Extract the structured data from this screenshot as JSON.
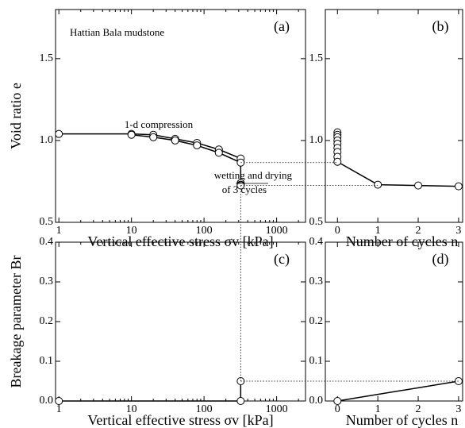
{
  "chart_data": [
    {
      "type": "line",
      "label": "(a)",
      "xlabel": "Vertical effective stress σv [kPa]",
      "ylabel": "Void ratio e",
      "annotations": [
        "Hattian Bala mudstone",
        "1-d compression",
        "wetting and drying",
        "of 3 cycles"
      ],
      "xlog": true,
      "xlim": [
        0.9,
        2500
      ],
      "xticks": [
        1,
        10,
        100,
        1000
      ],
      "ylim": [
        0.5,
        1.8
      ],
      "yticks": [
        0.5,
        {
          "value": 1.0,
          "label": "1.0"
        },
        1.5
      ],
      "color": "#000000",
      "series": [
        {
          "x": [
            1,
            10,
            20,
            40,
            80,
            160,
            320
          ],
          "values": [
            1.04,
            1.04,
            1.035,
            1.01,
            0.985,
            0.945,
            0.89
          ]
        },
        {
          "x": [
            10,
            20,
            40,
            80,
            160,
            320,
            320,
            320,
            320
          ],
          "values": [
            1.035,
            1.02,
            1.0,
            0.97,
            0.925,
            0.865,
            0.74,
            0.73,
            0.725
          ]
        }
      ]
    },
    {
      "type": "line",
      "label": "(b)",
      "xlabel": "Number of cycles n",
      "xlog": false,
      "xlim": [
        -0.3,
        3.1
      ],
      "xticks": [
        0,
        1,
        2,
        3
      ],
      "ylim": [
        0.5,
        1.8
      ],
      "yticks": [
        0.5,
        {
          "value": 1.0,
          "label": "1.0"
        },
        1.5
      ],
      "color": "#000000",
      "series": [
        {
          "x": [
            0,
            0,
            0,
            0,
            0,
            0,
            0,
            0,
            0,
            1,
            2,
            3
          ],
          "values": [
            1.05,
            1.035,
            1.02,
            1.0,
            0.98,
            0.955,
            0.93,
            0.9,
            0.87,
            0.73,
            0.725,
            0.72
          ]
        }
      ]
    },
    {
      "type": "line",
      "label": "(c)",
      "xlabel": "Vertical effective stress σv [kPa]",
      "ylabel": "Breakage parameter Br",
      "xlog": true,
      "xlim": [
        0.9,
        2500
      ],
      "xticks": [
        1,
        10,
        100,
        1000
      ],
      "ylim": [
        0,
        0.4
      ],
      "yticks": [
        {
          "value": 0,
          "label": "0.0"
        },
        0.1,
        0.2,
        0.3,
        0.4
      ],
      "color": "#000000",
      "series": [
        {
          "x": [
            1,
            320,
            320
          ],
          "values": [
            0,
            0,
            0.05
          ]
        }
      ]
    },
    {
      "type": "line",
      "label": "(d)",
      "xlabel": "Number of cycles n",
      "xlog": false,
      "xlim": [
        -0.3,
        3.1
      ],
      "xticks": [
        0,
        1,
        2,
        3
      ],
      "ylim": [
        0,
        0.4
      ],
      "yticks": [
        {
          "value": 0,
          "label": "0.0"
        },
        0.1,
        0.2,
        0.3,
        0.4
      ],
      "color": "#000000",
      "series": [
        {
          "x": [
            0,
            3
          ],
          "values": [
            0,
            0.05
          ]
        }
      ]
    }
  ]
}
